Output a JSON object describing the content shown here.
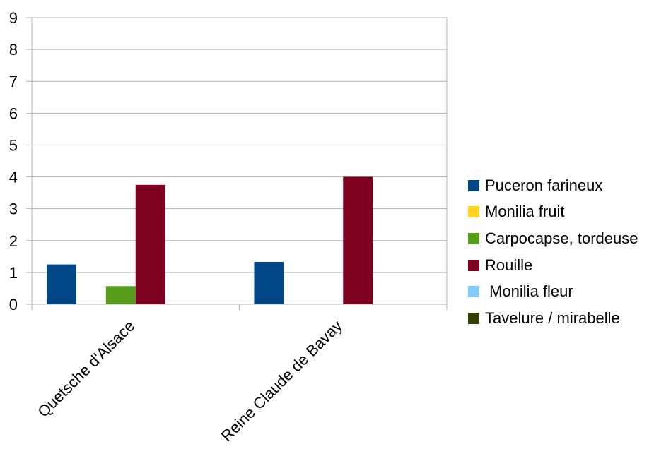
{
  "chart_data": {
    "type": "bar",
    "categories": [
      "Quetsche d'Alsace",
      "Reine Claude de Bavay"
    ],
    "series": [
      {
        "name": "Puceron farineux",
        "color": "#004586",
        "values": [
          1.25,
          1.33
        ]
      },
      {
        "name": "Monilia fruit",
        "color": "#ffd320",
        "values": [
          0,
          0
        ]
      },
      {
        "name": "Carpocapse, tordeuse",
        "color": "#579d1c",
        "values": [
          0.57,
          0
        ]
      },
      {
        "name": "Rouille",
        "color": "#7e0021",
        "values": [
          3.75,
          4
        ]
      },
      {
        "name": " Monilia fleur",
        "color": "#83caff",
        "values": [
          0,
          0
        ]
      },
      {
        "name": "Tavelure / mirabelle",
        "color": "#314004",
        "values": [
          0,
          0
        ]
      }
    ],
    "ylim": [
      0,
      9
    ],
    "yticks": [
      "0",
      "1",
      "2",
      "3",
      "4",
      "5",
      "6",
      "7",
      "8",
      "9"
    ],
    "grid": true,
    "legend_position": "right"
  }
}
